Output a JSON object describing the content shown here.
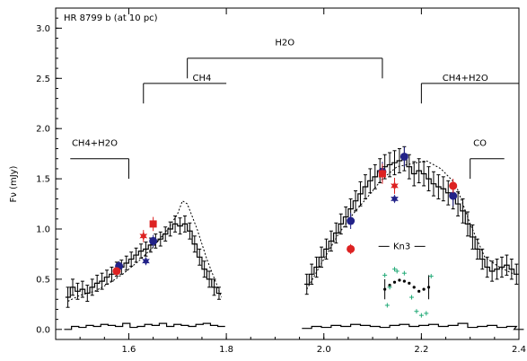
{
  "chart_data": {
    "type": "line",
    "title": "HR 8799 b (at 10 pc)",
    "xlabel": "",
    "ylabel": "Fν (mJy)",
    "xlim": [
      1.45,
      2.4
    ],
    "ylim": [
      -0.1,
      3.2
    ],
    "grid": false,
    "x_ticks": [
      {
        "v": 1.6,
        "label": "1.6"
      },
      {
        "v": 1.8,
        "label": "1.8"
      },
      {
        "v": 2.0,
        "label": "2.0"
      },
      {
        "v": 2.2,
        "label": "2.2"
      },
      {
        "v": 2.4,
        "label": "2.4"
      }
    ],
    "y_ticks": [
      {
        "v": 0.0,
        "label": "0.0"
      },
      {
        "v": 0.5,
        "label": "0.5"
      },
      {
        "v": 1.0,
        "label": "1.0"
      },
      {
        "v": 1.5,
        "label": "1.5"
      },
      {
        "v": 2.0,
        "label": "2.0"
      },
      {
        "v": 2.5,
        "label": "2.5"
      },
      {
        "v": 3.0,
        "label": "3.0"
      }
    ],
    "band_labels": [
      {
        "label": "CH4+H2O",
        "text_x": 1.53,
        "text_y": 1.8,
        "x1": 1.48,
        "x2": 1.6,
        "bar_y": 1.7,
        "tick_y": 1.5,
        "tick_side": "right"
      },
      {
        "label": "CH4",
        "text_x": 1.75,
        "text_y": 2.45,
        "x1": 1.63,
        "x2": 1.8,
        "bar_y": 2.45,
        "tick_y": 2.25,
        "tick_side": "left"
      },
      {
        "label": "H2O",
        "text_x": 1.92,
        "text_y": 2.8,
        "x1": 1.72,
        "x2": 2.12,
        "bar_y": 2.7,
        "tick_y": 2.5,
        "tick_side": "both"
      },
      {
        "label": "CH4+H2O",
        "text_x": 2.29,
        "text_y": 2.45,
        "x1": 2.2,
        "x2": 2.4,
        "bar_y": 2.45,
        "tick_y": 2.25,
        "tick_side": "left"
      },
      {
        "label": "CO",
        "text_x": 2.32,
        "text_y": 1.8,
        "x1": 2.3,
        "x2": 2.37,
        "bar_y": 1.7,
        "tick_y": 1.5,
        "tick_side": "left"
      }
    ],
    "kn3_label": {
      "text": "Kn3",
      "x": 2.16,
      "y": 0.8
    },
    "series": [
      {
        "kind": "step-errorbars",
        "color": "#000000",
        "x": [
          1.475,
          1.485,
          1.495,
          1.505,
          1.515,
          1.525,
          1.535,
          1.545,
          1.555,
          1.565,
          1.575,
          1.585,
          1.595,
          1.605,
          1.615,
          1.625,
          1.635,
          1.645,
          1.655,
          1.665,
          1.675,
          1.685,
          1.695,
          1.705,
          1.715,
          1.725,
          1.735,
          1.745,
          1.755,
          1.765,
          1.775,
          1.785
        ],
        "y": [
          0.32,
          0.42,
          0.38,
          0.4,
          0.36,
          0.42,
          0.46,
          0.48,
          0.52,
          0.55,
          0.6,
          0.62,
          0.66,
          0.7,
          0.74,
          0.78,
          0.8,
          0.84,
          0.88,
          0.9,
          0.95,
          1.0,
          1.05,
          1.03,
          1.05,
          0.98,
          0.85,
          0.72,
          0.6,
          0.5,
          0.42,
          0.36
        ],
        "err": [
          0.1,
          0.08,
          0.08,
          0.08,
          0.08,
          0.08,
          0.08,
          0.08,
          0.07,
          0.07,
          0.07,
          0.07,
          0.07,
          0.07,
          0.07,
          0.07,
          0.07,
          0.07,
          0.07,
          0.07,
          0.07,
          0.07,
          0.08,
          0.08,
          0.08,
          0.08,
          0.08,
          0.08,
          0.08,
          0.08,
          0.08,
          0.06
        ]
      },
      {
        "kind": "step-errorbars",
        "color": "#000000",
        "x": [
          1.965,
          1.975,
          1.985,
          1.995,
          2.005,
          2.015,
          2.025,
          2.035,
          2.045,
          2.055,
          2.065,
          2.075,
          2.085,
          2.095,
          2.105,
          2.115,
          2.125,
          2.135,
          2.145,
          2.155,
          2.165,
          2.175,
          2.185,
          2.195,
          2.205,
          2.215,
          2.225,
          2.235,
          2.245,
          2.255,
          2.265,
          2.275,
          2.285,
          2.295,
          2.305,
          2.315,
          2.325,
          2.335,
          2.345,
          2.355,
          2.365,
          2.375,
          2.385,
          2.395
        ],
        "y": [
          0.45,
          0.55,
          0.62,
          0.72,
          0.8,
          0.88,
          0.96,
          1.05,
          1.12,
          1.2,
          1.28,
          1.35,
          1.42,
          1.48,
          1.52,
          1.58,
          1.62,
          1.64,
          1.66,
          1.68,
          1.7,
          1.62,
          1.55,
          1.58,
          1.55,
          1.5,
          1.45,
          1.42,
          1.4,
          1.36,
          1.32,
          1.25,
          1.18,
          1.05,
          0.92,
          0.8,
          0.7,
          0.62,
          0.58,
          0.6,
          0.62,
          0.64,
          0.6,
          0.55
        ],
        "err": [
          0.1,
          0.1,
          0.1,
          0.1,
          0.1,
          0.1,
          0.1,
          0.1,
          0.1,
          0.1,
          0.1,
          0.12,
          0.12,
          0.12,
          0.12,
          0.12,
          0.12,
          0.12,
          0.12,
          0.12,
          0.12,
          0.12,
          0.12,
          0.12,
          0.12,
          0.12,
          0.12,
          0.12,
          0.12,
          0.12,
          0.12,
          0.12,
          0.12,
          0.12,
          0.12,
          0.1,
          0.1,
          0.1,
          0.1,
          0.1,
          0.1,
          0.1,
          0.1,
          0.1
        ]
      },
      {
        "kind": "dotted",
        "color": "#000000",
        "x": [
          1.475,
          1.5,
          1.53,
          1.56,
          1.59,
          1.62,
          1.65,
          1.68,
          1.7,
          1.71,
          1.72,
          1.74,
          1.76,
          1.78,
          1.79
        ],
        "y": [
          0.28,
          0.34,
          0.38,
          0.46,
          0.56,
          0.68,
          0.82,
          1.0,
          1.15,
          1.28,
          1.25,
          1.0,
          0.7,
          0.45,
          0.32
        ]
      },
      {
        "kind": "dotted",
        "color": "#000000",
        "x": [
          1.965,
          2.0,
          2.03,
          2.06,
          2.09,
          2.12,
          2.15,
          2.18,
          2.21,
          2.24,
          2.27,
          2.3,
          2.33,
          2.36,
          2.39
        ],
        "y": [
          0.4,
          0.7,
          0.95,
          1.15,
          1.32,
          1.5,
          1.62,
          1.65,
          1.68,
          1.6,
          1.45,
          1.05,
          0.72,
          0.62,
          0.55
        ]
      },
      {
        "kind": "step",
        "color": "#000000",
        "x": [
          1.475,
          1.49,
          1.505,
          1.52,
          1.535,
          1.55,
          1.565,
          1.58,
          1.595,
          1.61,
          1.625,
          1.64,
          1.655,
          1.67,
          1.685,
          1.7,
          1.715,
          1.73,
          1.745,
          1.76,
          1.775,
          1.79
        ],
        "y": [
          0.0,
          0.03,
          0.02,
          0.04,
          0.03,
          0.05,
          0.04,
          0.03,
          0.06,
          0.02,
          0.03,
          0.05,
          0.04,
          0.06,
          0.03,
          0.05,
          0.04,
          0.03,
          0.05,
          0.06,
          0.04,
          0.03
        ]
      },
      {
        "kind": "step",
        "color": "#000000",
        "x": [
          1.965,
          1.985,
          2.005,
          2.025,
          2.045,
          2.065,
          2.085,
          2.105,
          2.125,
          2.145,
          2.165,
          2.185,
          2.205,
          2.225,
          2.245,
          2.265,
          2.285,
          2.305,
          2.325,
          2.345,
          2.365,
          2.385,
          2.4
        ],
        "y": [
          0.01,
          0.03,
          0.02,
          0.04,
          0.03,
          0.05,
          0.04,
          0.03,
          0.02,
          0.04,
          0.05,
          0.03,
          0.04,
          0.05,
          0.03,
          0.04,
          0.06,
          0.02,
          0.03,
          0.04,
          0.02,
          0.03,
          0.0
        ]
      },
      {
        "kind": "markers",
        "shape": "circle",
        "color": "#222288",
        "x": [
          1.58,
          1.65,
          2.055,
          2.12,
          2.165,
          2.265
        ],
        "y": [
          0.63,
          0.88,
          1.08,
          1.57,
          1.72,
          1.33
        ],
        "err": [
          0.05,
          0.06,
          0.08,
          0.1,
          0.1,
          0.1
        ]
      },
      {
        "kind": "markers",
        "shape": "circle",
        "color": "#dd2222",
        "x": [
          1.575,
          2.055,
          2.265
        ],
        "y": [
          0.58,
          0.8,
          1.43
        ],
        "err": [
          0.04,
          0.05,
          0.07
        ]
      },
      {
        "kind": "markers",
        "shape": "square",
        "color": "#dd2222",
        "x": [
          1.65,
          2.12
        ],
        "y": [
          1.05,
          1.55
        ],
        "err": [
          0.07,
          0.1
        ]
      },
      {
        "kind": "markers",
        "shape": "star",
        "color": "#dd2222",
        "x": [
          1.63,
          2.145
        ],
        "y": [
          0.93,
          1.43
        ],
        "err": [
          0.06,
          0.08
        ]
      },
      {
        "kind": "markers",
        "shape": "star",
        "color": "#222288",
        "x": [
          1.635,
          2.145
        ],
        "y": [
          0.68,
          1.3
        ],
        "err": [
          0,
          0
        ]
      },
      {
        "kind": "markers",
        "shape": "dot",
        "color": "#000000",
        "x": [
          2.125,
          2.135,
          2.145,
          2.155,
          2.165,
          2.175,
          2.185,
          2.195,
          2.205,
          2.215
        ],
        "y": [
          0.4,
          0.44,
          0.47,
          0.49,
          0.48,
          0.46,
          0.42,
          0.38,
          0.4,
          0.42
        ],
        "err": [
          0.1,
          0,
          0,
          0,
          0,
          0,
          0,
          0,
          0,
          0.12
        ]
      },
      {
        "kind": "markers",
        "shape": "plus",
        "color": "#22aa77",
        "x": [
          2.125,
          2.13,
          2.135,
          2.145,
          2.15,
          2.165,
          2.18,
          2.19,
          2.2,
          2.21,
          2.22
        ],
        "y": [
          0.54,
          0.24,
          0.42,
          0.6,
          0.58,
          0.56,
          0.32,
          0.18,
          0.14,
          0.16,
          0.53
        ],
        "err": [
          0,
          0,
          0,
          0,
          0,
          0,
          0,
          0,
          0,
          0,
          0
        ]
      }
    ]
  }
}
